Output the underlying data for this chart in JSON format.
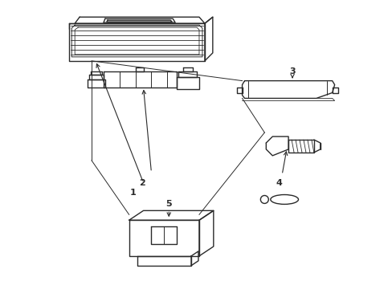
{
  "bg_color": "#ffffff",
  "line_color": "#2a2a2a",
  "line_width": 1.0,
  "fig_width": 4.89,
  "fig_height": 3.6,
  "dpi": 100
}
